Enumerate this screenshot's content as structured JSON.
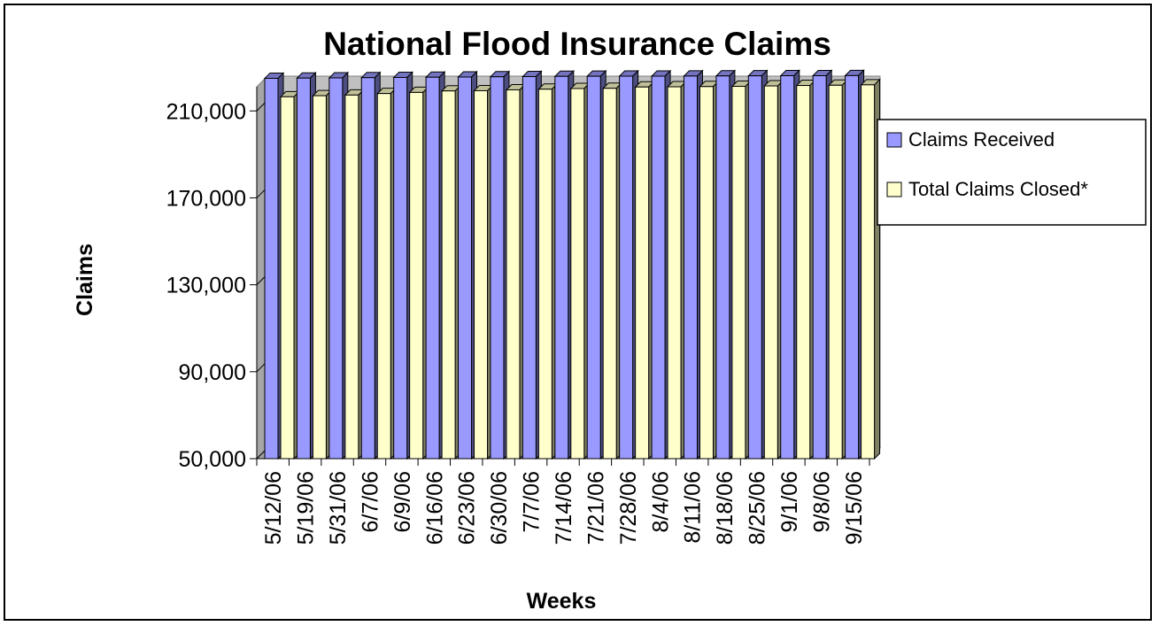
{
  "chart_data": {
    "type": "bar",
    "title": "National Flood Insurance Claims",
    "xlabel": "Weeks",
    "ylabel": "Claims",
    "ylim": [
      50000,
      226000
    ],
    "yticks": [
      50000,
      90000,
      130000,
      170000,
      210000
    ],
    "ytick_labels": [
      "50,000",
      "90,000",
      "130,000",
      "170,000",
      "210,000"
    ],
    "categories": [
      "5/12/06",
      "5/19/06",
      "5/31/06",
      "6/7/06",
      "6/9/06",
      "6/16/06",
      "6/23/06",
      "6/30/06",
      "7/7/06",
      "7/14/06",
      "7/21/06",
      "7/28/06",
      "8/4/06",
      "8/11/06",
      "8/18/06",
      "8/25/06",
      "9/1/06",
      "9/8/06",
      "9/15/06"
    ],
    "series": [
      {
        "name": "Claims Received",
        "color": "#9999ff",
        "values": [
          225000,
          225100,
          225200,
          225300,
          225400,
          225500,
          225600,
          225700,
          225800,
          225900,
          225950,
          226000,
          226000,
          226050,
          226100,
          226150,
          226200,
          226200,
          226250
        ]
      },
      {
        "name": "Total Claims Closed*",
        "color": "#ffffcc",
        "values": [
          216500,
          217000,
          217300,
          218000,
          218500,
          219200,
          219300,
          219700,
          220000,
          220300,
          220400,
          221000,
          221100,
          221200,
          221300,
          221500,
          221700,
          221800,
          222000
        ]
      }
    ],
    "grid": true,
    "legend_position": "right"
  }
}
